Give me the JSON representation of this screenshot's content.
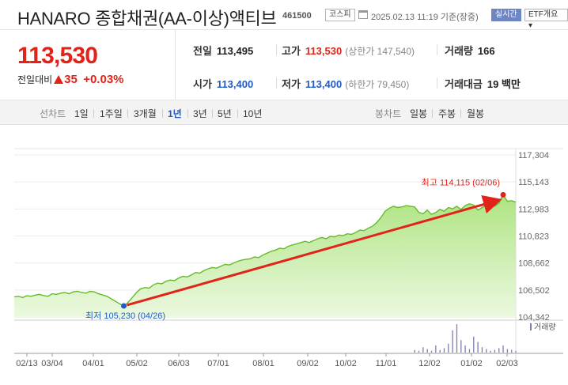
{
  "header": {
    "name": "HANARO 종합채권(AA-이상)액티브",
    "code": "461500",
    "market_badge": "코스피",
    "timestamp": "2025.02.13 11:19 기준(장중)",
    "live_badge": "실시간",
    "etf_badge": "ETF개요 ▾"
  },
  "price": {
    "current": "113,530",
    "change_label": "전일대비",
    "change": "35",
    "change_pct": "+0.03%"
  },
  "stats": {
    "prev_label": "전일",
    "prev": "113,495",
    "high_label": "고가",
    "high": "113,530",
    "upper_limit": "(상한가 147,540)",
    "volume_label": "거래량",
    "volume": "166",
    "open_label": "시가",
    "open": "113,400",
    "low_label": "저가",
    "low": "113,400",
    "lower_limit": "(하한가 79,450)",
    "amount_label": "거래대금",
    "amount": "19 백만"
  },
  "tabs": {
    "line_label": "선차트",
    "periods": [
      "1일",
      "1주일",
      "3개월",
      "1년",
      "3년",
      "5년",
      "10년"
    ],
    "active": "1년",
    "candle_label": "봉차트",
    "candles": [
      "일봉",
      "주봉",
      "월봉"
    ]
  },
  "chart_data": {
    "type": "area",
    "y_ticks": [
      "117,304",
      "115,143",
      "112,983",
      "110,823",
      "108,662",
      "106,502",
      "104,342"
    ],
    "ylim": [
      104342,
      117304
    ],
    "x_ticks": [
      "02/13",
      "03/04",
      "04/01",
      "05/02",
      "06/03",
      "07/01",
      "08/01",
      "09/02",
      "10/02",
      "11/01",
      "12/02",
      "01/02",
      "02/03"
    ],
    "series": [
      {
        "values": [
          105950,
          106000,
          105900,
          106050,
          106000,
          106100,
          106150,
          106050,
          106000,
          106200,
          106150,
          106250,
          106300,
          106200,
          106350,
          106400,
          106300,
          106250,
          106400,
          106350,
          106200,
          106100,
          106000,
          105800,
          105600,
          105400,
          105230,
          105500,
          105900,
          106300,
          106600,
          106700,
          106650,
          106900,
          107050,
          107000,
          107200,
          107300,
          107250,
          107450,
          107600,
          107550,
          107700,
          107900,
          107850,
          108050,
          108200,
          108300,
          108250,
          108400,
          108550,
          108500,
          108650,
          108800,
          108900,
          108950,
          109000,
          109150,
          109100,
          109300,
          109450,
          109600,
          109700,
          109850,
          109800,
          110000,
          110100,
          110200,
          110300,
          110400,
          110300,
          110450,
          110600,
          110700,
          110600,
          110800,
          110750,
          110900,
          110850,
          111000,
          110950,
          111100,
          111300,
          111250,
          111450,
          111600,
          111900,
          112300,
          112800,
          113050,
          113200,
          113100,
          113150,
          113250,
          113200,
          113150,
          112700,
          112600,
          112900,
          112550,
          112700,
          112950,
          112800,
          113100,
          113000,
          113200,
          112950,
          113250,
          113400,
          113300,
          112900,
          113100,
          113300,
          113500,
          113200,
          113450,
          114115,
          113600,
          113650,
          113530
        ]
      }
    ],
    "high_label": "최고 114,115 (02/06)",
    "low_label": "최저 105,230 (04/26)",
    "volume_label": "거래량",
    "volume_values": [
      0,
      0,
      0,
      0,
      0,
      0,
      0,
      0,
      0,
      0,
      0,
      0,
      0,
      0,
      0,
      0,
      0,
      0,
      0,
      0,
      0,
      0,
      0,
      0,
      0,
      0,
      0,
      0,
      0,
      0,
      0,
      0,
      0,
      0,
      0,
      0,
      0,
      0,
      0,
      0,
      0,
      0,
      0,
      0,
      0,
      0,
      0,
      0,
      0,
      0,
      0,
      0,
      0,
      0,
      0,
      0,
      0,
      0,
      0,
      0,
      0,
      0,
      0,
      0,
      0,
      0,
      0,
      0,
      0,
      0,
      0,
      0,
      0,
      0,
      0,
      0,
      0,
      0,
      0,
      0,
      0,
      0,
      0,
      0,
      0,
      0,
      0,
      0,
      0,
      0,
      0,
      0,
      0,
      0,
      0,
      3,
      2,
      6,
      4,
      2,
      8,
      3,
      5,
      10,
      25,
      32,
      14,
      8,
      4,
      18,
      12,
      6,
      4,
      2,
      3,
      5,
      8,
      4,
      3,
      2
    ]
  }
}
